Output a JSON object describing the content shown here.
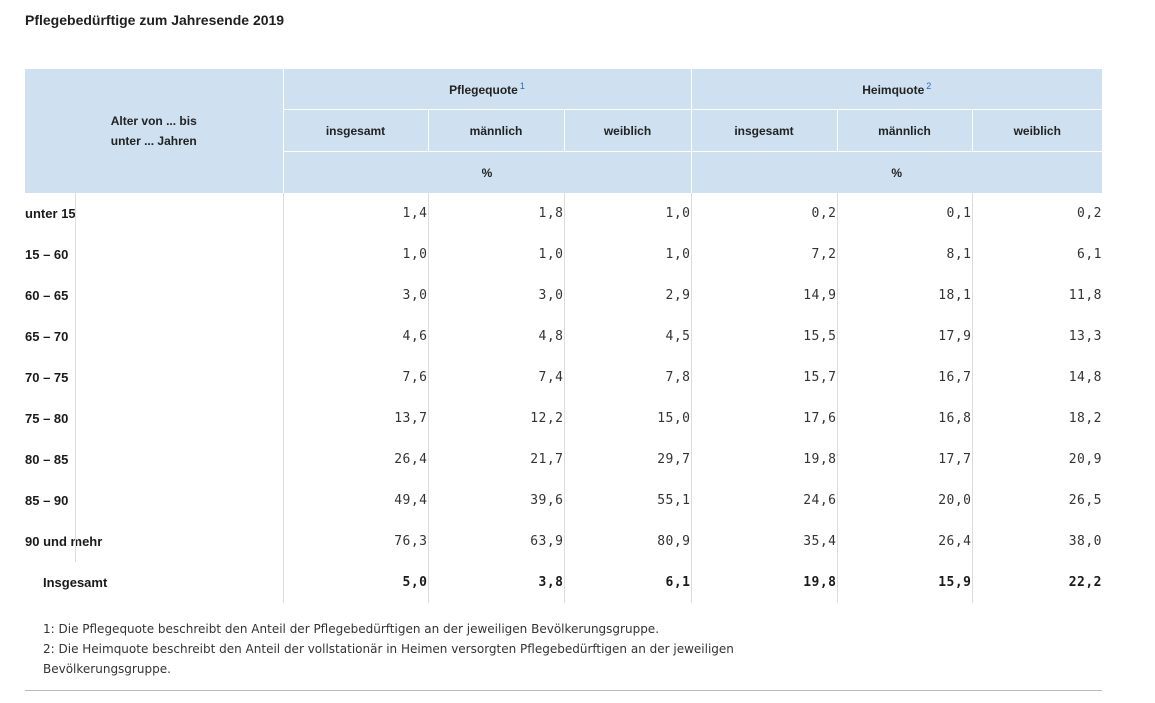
{
  "title": "Pflegebedürftige zum Jahresende 2019",
  "header": {
    "row_label_line1": "Alter von ... bis",
    "row_label_line2": "unter ... Jahren",
    "group1": "Pflegequote",
    "group1_footnote": "1",
    "group2": "Heimquote",
    "group2_footnote": "2",
    "sub": [
      "insgesamt",
      "männlich",
      "weiblich",
      "insgesamt",
      "männlich",
      "weiblich"
    ],
    "unit1": "%",
    "unit2": "%"
  },
  "rows": [
    {
      "label": "unter 15",
      "values": [
        "1,4",
        "1,8",
        "1,0",
        "0,2",
        "0,1",
        "0,2"
      ]
    },
    {
      "label": "15 – 60",
      "values": [
        "1,0",
        "1,0",
        "1,0",
        "7,2",
        "8,1",
        "6,1"
      ]
    },
    {
      "label": "60 – 65",
      "values": [
        "3,0",
        "3,0",
        "2,9",
        "14,9",
        "18,1",
        "11,8"
      ]
    },
    {
      "label": "65 – 70",
      "values": [
        "4,6",
        "4,8",
        "4,5",
        "15,5",
        "17,9",
        "13,3"
      ]
    },
    {
      "label": "70 – 75",
      "values": [
        "7,6",
        "7,4",
        "7,8",
        "15,7",
        "16,7",
        "14,8"
      ]
    },
    {
      "label": "75 – 80",
      "values": [
        "13,7",
        "12,2",
        "15,0",
        "17,6",
        "16,8",
        "18,2"
      ]
    },
    {
      "label": "80 – 85",
      "values": [
        "26,4",
        "21,7",
        "29,7",
        "19,8",
        "17,7",
        "20,9"
      ]
    },
    {
      "label": "85 – 90",
      "values": [
        "49,4",
        "39,6",
        "55,1",
        "24,6",
        "20,0",
        "26,5"
      ]
    },
    {
      "label": "90 und mehr",
      "values": [
        "76,3",
        "63,9",
        "80,9",
        "35,4",
        "26,4",
        "38,0"
      ]
    }
  ],
  "total": {
    "label": "Insgesamt",
    "values": [
      "5,0",
      "3,8",
      "6,1",
      "19,8",
      "15,9",
      "22,2"
    ]
  },
  "footnotes": [
    "1: Die Pflegequote beschreibt den Anteil der Pflegebedürftigen an der jeweiligen Bevölkerungsgruppe.",
    "2: Die Heimquote beschreibt den Anteil der vollstationär in Heimen versorgten Pflegebedürftigen an der jeweiligen Bevölkerungsgruppe."
  ],
  "colors": {
    "header_bg": "#cfe0f0",
    "footnote_link": "#2a6bb5"
  }
}
